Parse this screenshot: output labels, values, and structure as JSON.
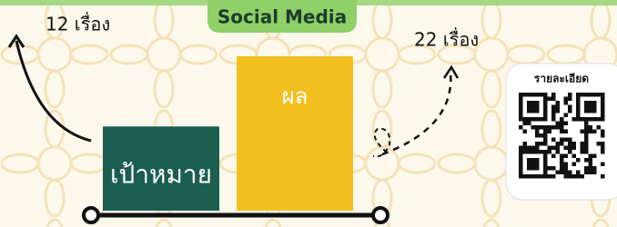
{
  "chart_data": {
    "type": "bar",
    "title": "Social Media",
    "categories": [
      "เป้าหมาย",
      "ผล"
    ],
    "values": [
      12,
      22
    ],
    "value_labels": [
      "12 เรื่อง",
      "22 เรื่อง"
    ],
    "colors": [
      "#1b5e50",
      "#f2c01e"
    ]
  },
  "qr_card": {
    "label": "รายละเอียด"
  }
}
